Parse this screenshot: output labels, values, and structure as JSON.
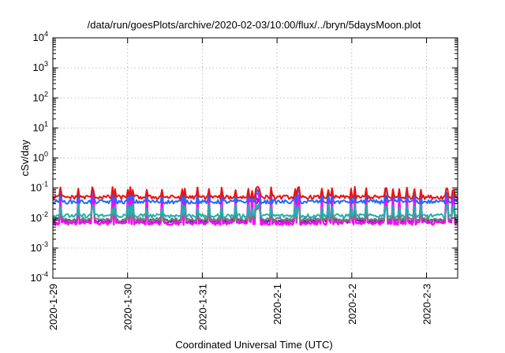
{
  "chart_data": {
    "type": "line",
    "title": "/data/run/goesPlots/archive/2020-02-03/10:00/flux/../bryn/5daysMoon.plot",
    "xlabel": "Coordinated Universal Time (UTC)",
    "ylabel": "cSv/day",
    "yscale": "log",
    "ylim": [
      0.0001,
      10000
    ],
    "yticks": [
      {
        "value": 0.0001,
        "base": "10",
        "exp": "-4"
      },
      {
        "value": 0.001,
        "base": "10",
        "exp": "-3"
      },
      {
        "value": 0.01,
        "base": "10",
        "exp": "-2"
      },
      {
        "value": 0.1,
        "base": "10",
        "exp": "-1"
      },
      {
        "value": 1,
        "base": "10",
        "exp": "0"
      },
      {
        "value": 10,
        "base": "10",
        "exp": "1"
      },
      {
        "value": 100,
        "base": "10",
        "exp": "2"
      },
      {
        "value": 1000,
        "base": "10",
        "exp": "3"
      },
      {
        "value": 10000,
        "base": "10",
        "exp": "4"
      }
    ],
    "xlim": [
      "2020-01-29 00:00",
      "2020-02-03 10:00"
    ],
    "xticks": [
      "2020-1-29",
      "2020-1-30",
      "2020-1-31",
      "2020-2-1",
      "2020-2-2",
      "2020-2-3"
    ],
    "grid": true,
    "legend": "none",
    "series": [
      {
        "color": "#ee1111",
        "baseline": 0.05,
        "spike_max": 0.11
      },
      {
        "color": "#1e6bff",
        "baseline": 0.035,
        "spike_max": 0.09
      },
      {
        "color": "#20b2aa",
        "baseline": 0.012,
        "spike_max": 0.03
      },
      {
        "color": "#777777",
        "baseline": 0.009,
        "spike_max": 0.025
      },
      {
        "color": "#7a1faa",
        "baseline": 0.008,
        "spike_max": 0.05
      },
      {
        "color": "#ff00ff",
        "baseline": 0.007,
        "spike_max": 0.07
      },
      {
        "color": "#3a3a9a",
        "baseline": 0.008,
        "spike_max": 0.06
      }
    ]
  }
}
